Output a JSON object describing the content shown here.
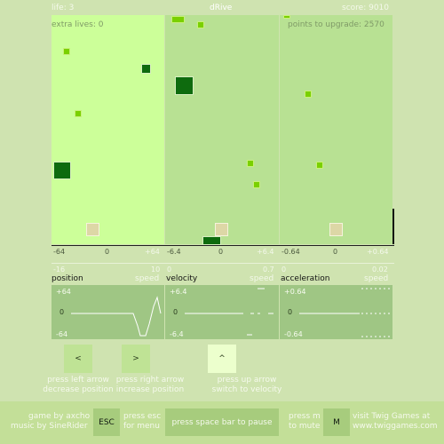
{
  "hud": {
    "life": "life: 3",
    "title": "dRive",
    "score": "score: 9010"
  },
  "lanes": {
    "extra_lives": "extra lives: 0",
    "points_to_upgrade": "points to upgrade: 2570"
  },
  "axes": {
    "position": {
      "left": "-64",
      "mid": "0",
      "right": "+64"
    },
    "velocity": {
      "left": "-6.4",
      "mid": "0",
      "right": "+6.4"
    },
    "acceleration": {
      "left": "-0.64",
      "mid": "0",
      "right": "+0.64"
    }
  },
  "graphs": {
    "position": {
      "min": "-16",
      "max": "10",
      "label": "position",
      "speed": "speed",
      "top": "+64",
      "zero": "0",
      "bottom": "-64"
    },
    "velocity": {
      "min": "0",
      "max": "0.7",
      "label": "velocity",
      "speed": "speed",
      "top": "+6.4",
      "zero": "0",
      "bottom": "-6.4"
    },
    "acceleration": {
      "min": "0",
      "max": "0.02",
      "label": "acceleration",
      "speed": "speed",
      "top": "+0.64",
      "zero": "0",
      "bottom": "-0.64"
    }
  },
  "controls": {
    "left": {
      "key": "<",
      "line1": "press left arrow",
      "line2": "decrease position"
    },
    "right": {
      "key": ">",
      "line1": "press right arrow",
      "line2": "increase position"
    },
    "up": {
      "key": "^",
      "line1": "press up arrow",
      "line2": "switch to velocity"
    }
  },
  "footer": {
    "credit1": "game by axcho",
    "credit2": "music by SineRider",
    "esc_key": "ESC",
    "esc1": "press esc",
    "esc2": "for menu",
    "pause": "press space bar to pause",
    "mute1": "press m",
    "mute2": "to mute",
    "m_key": "M",
    "visit1": "visit Twig Games at",
    "visit2": "www.twiggames.com"
  }
}
